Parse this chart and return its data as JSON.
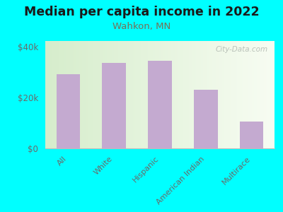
{
  "title": "Median per capita income in 2022",
  "subtitle": "Wahkon, MN",
  "categories": [
    "All",
    "White",
    "Hispanic",
    "American Indian",
    "Multirace"
  ],
  "values": [
    29000,
    33500,
    34500,
    23000,
    10500
  ],
  "bar_color": "#c4aad0",
  "background_outer": "#00ffff",
  "background_inner_left": "#d8edcc",
  "background_inner_right": "#f5f8ee",
  "title_fontsize": 12.5,
  "title_color": "#1a1a1a",
  "subtitle_fontsize": 9.5,
  "subtitle_color": "#777055",
  "tick_color": "#6a6a6a",
  "ylim": [
    0,
    42000
  ],
  "yticks": [
    0,
    20000,
    40000
  ],
  "ytick_labels": [
    "$0",
    "$20k",
    "$40k"
  ],
  "watermark": "City-Data.com"
}
